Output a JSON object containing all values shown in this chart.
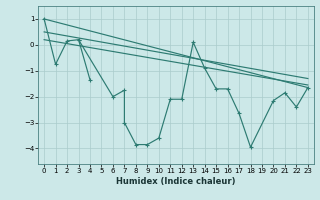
{
  "xlabel": "Humidex (Indice chaleur)",
  "xlim": [
    -0.5,
    23.5
  ],
  "ylim": [
    -4.6,
    1.5
  ],
  "yticks": [
    1,
    0,
    -1,
    -2,
    -3,
    -4
  ],
  "xticks": [
    0,
    1,
    2,
    3,
    4,
    5,
    6,
    7,
    8,
    9,
    10,
    11,
    12,
    13,
    14,
    15,
    16,
    17,
    18,
    19,
    20,
    21,
    22,
    23
  ],
  "bg_color": "#cce8e8",
  "line_color": "#2d7b72",
  "grid_color": "#aacccc",
  "zigzag": {
    "x": [
      0,
      1,
      2,
      3,
      6,
      7,
      7,
      8,
      9,
      10,
      11,
      12,
      13,
      14,
      15,
      16,
      17,
      18,
      20,
      21,
      22,
      23
    ],
    "y": [
      1.0,
      -0.75,
      0.15,
      0.2,
      -2.0,
      -1.75,
      -3.0,
      -3.85,
      -3.85,
      -3.6,
      -2.1,
      -2.1,
      0.1,
      -0.9,
      -1.7,
      -1.7,
      -2.65,
      -3.95,
      -2.15,
      -1.85,
      -2.4,
      -1.65
    ]
  },
  "zigzag2": {
    "x": [
      3,
      4
    ],
    "y": [
      0.2,
      -1.35
    ]
  },
  "straight_lines": [
    {
      "x": [
        0,
        23
      ],
      "y": [
        1.0,
        -1.65
      ]
    },
    {
      "x": [
        0,
        23
      ],
      "y": [
        0.5,
        -1.3
      ]
    },
    {
      "x": [
        0,
        23
      ],
      "y": [
        0.2,
        -1.55
      ]
    }
  ]
}
